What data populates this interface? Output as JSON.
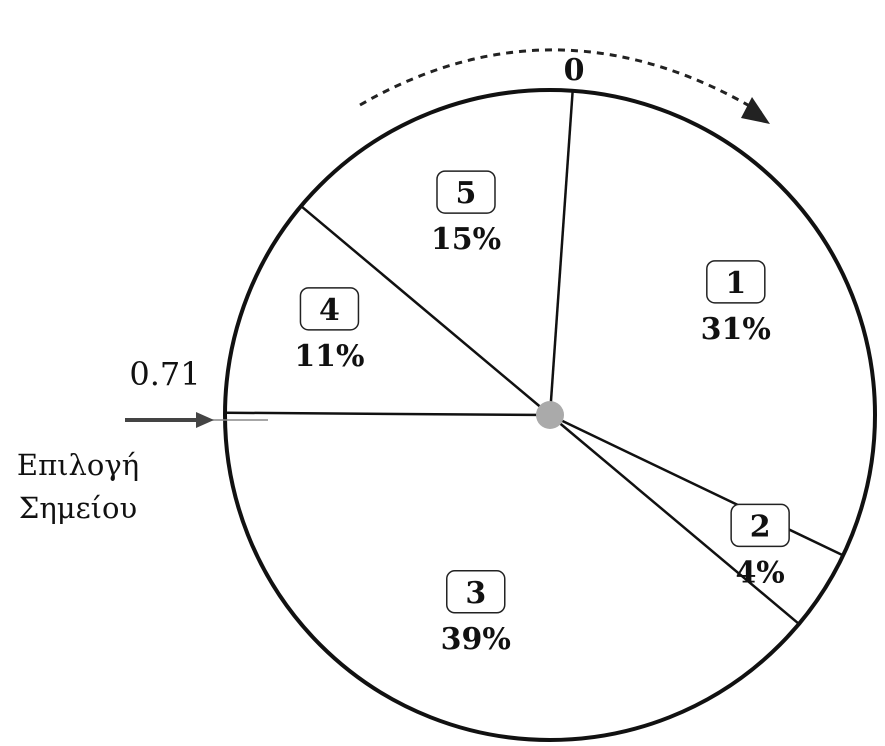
{
  "chart_data": {
    "type": "pie",
    "segments": [
      {
        "label": "1",
        "percent": "31%",
        "value": 31
      },
      {
        "label": "2",
        "percent": "4%",
        "value": 4
      },
      {
        "label": "3",
        "percent": "39%",
        "value": 39
      },
      {
        "label": "4",
        "percent": "11%",
        "value": 11
      },
      {
        "label": "5",
        "percent": "15%",
        "value": 15
      }
    ],
    "start_label": "0",
    "direction": "clockwise",
    "pointer": {
      "value": "0.71",
      "caption_line1": "Επιλογή",
      "caption_line2": "Σημείου"
    }
  }
}
